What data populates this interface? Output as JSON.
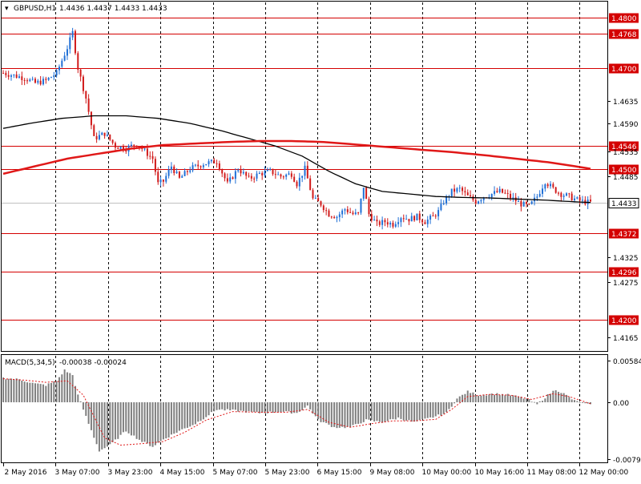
{
  "header": {
    "symbol": "GBPUSD,H1",
    "ohlc": "1.4436 1.4437 1.4433 1.4433"
  },
  "macd_header": {
    "label": "MACD(5,34,5)",
    "values": "-0.00038 -0.00024"
  },
  "colors": {
    "bull": "#1f6fd6",
    "bear": "#d11a1a",
    "level": "#d40000",
    "ma_fast": "#000000",
    "ma_slow": "#e01818",
    "macd_bar": "#7f7f7f",
    "macd_signal": "#e01818",
    "grid": "#000000"
  },
  "chart_data": {
    "type": "candlestick",
    "ylim": [
      1.414,
      1.483
    ],
    "price_ticks": [
      "1.4800",
      "1.4768",
      "1.4700",
      "1.4635",
      "1.4590",
      "1.4546",
      "1.4535",
      "1.4500",
      "1.4485",
      "1.4433",
      "1.4372",
      "1.4325",
      "1.4296",
      "1.4275",
      "1.4200",
      "1.4165"
    ],
    "levels": [
      {
        "value": 1.48,
        "label": "1.4800"
      },
      {
        "value": 1.4768,
        "label": "1.4768"
      },
      {
        "value": 1.47,
        "label": "1.4700"
      },
      {
        "value": 1.4546,
        "label": "1.4546"
      },
      {
        "value": 1.45,
        "label": "1.4500"
      },
      {
        "value": 1.4372,
        "label": "1.4372"
      },
      {
        "value": 1.4296,
        "label": "1.4296"
      },
      {
        "value": 1.42,
        "label": "1.4200"
      }
    ],
    "current_price": {
      "value": 1.4433,
      "label": "1.4433"
    },
    "x_labels": [
      "2 May 2016",
      "3 May 07:00",
      "3 May 23:00",
      "4 May 15:00",
      "5 May 07:00",
      "5 May 23:00",
      "6 May 15:00",
      "9 May 08:00",
      "10 May 00:00",
      "10 May 16:00",
      "11 May 08:00",
      "12 May 00:00"
    ],
    "grid": "vertical dashed at x labels",
    "close_path": [
      [
        0,
        1.469
      ],
      [
        4,
        1.4685
      ],
      [
        8,
        1.468
      ],
      [
        12,
        1.467
      ],
      [
        16,
        1.4675
      ],
      [
        20,
        1.469
      ],
      [
        24,
        1.474
      ],
      [
        26,
        1.477
      ],
      [
        28,
        1.47
      ],
      [
        31,
        1.464
      ],
      [
        34,
        1.456
      ],
      [
        38,
        1.457
      ],
      [
        42,
        1.4545
      ],
      [
        46,
        1.454
      ],
      [
        50,
        1.455
      ],
      [
        54,
        1.453
      ],
      [
        56,
        1.452
      ],
      [
        58,
        1.447
      ],
      [
        60,
        1.4475
      ],
      [
        63,
        1.4505
      ],
      [
        66,
        1.448
      ],
      [
        70,
        1.45
      ],
      [
        75,
        1.451
      ],
      [
        80,
        1.4515
      ],
      [
        84,
        1.447
      ],
      [
        88,
        1.45
      ],
      [
        92,
        1.448
      ],
      [
        96,
        1.449
      ],
      [
        100,
        1.4495
      ],
      [
        104,
        1.4485
      ],
      [
        108,
        1.449
      ],
      [
        110,
        1.447
      ],
      [
        113,
        1.45
      ],
      [
        116,
        1.444
      ],
      [
        119,
        1.443
      ],
      [
        122,
        1.441
      ],
      [
        125,
        1.4405
      ],
      [
        128,
        1.442
      ],
      [
        131,
        1.441
      ],
      [
        133,
        1.441
      ],
      [
        135,
        1.4465
      ],
      [
        137,
        1.441
      ],
      [
        140,
        1.439
      ],
      [
        143,
        1.4395
      ],
      [
        146,
        1.439
      ],
      [
        149,
        1.4405
      ],
      [
        152,
        1.44
      ],
      [
        155,
        1.4405
      ],
      [
        158,
        1.4395
      ],
      [
        161,
        1.4405
      ],
      [
        163,
        1.4415
      ],
      [
        165,
        1.4435
      ],
      [
        168,
        1.4455
      ],
      [
        171,
        1.446
      ],
      [
        174,
        1.4445
      ],
      [
        177,
        1.4435
      ],
      [
        180,
        1.4445
      ],
      [
        183,
        1.445
      ],
      [
        186,
        1.4455
      ],
      [
        188,
        1.445
      ],
      [
        191,
        1.444
      ],
      [
        194,
        1.443
      ],
      [
        197,
        1.4425
      ],
      [
        200,
        1.4445
      ],
      [
        203,
        1.4475
      ],
      [
        206,
        1.446
      ],
      [
        209,
        1.445
      ],
      [
        212,
        1.4445
      ],
      [
        214,
        1.444
      ],
      [
        217,
        1.4435
      ],
      [
        220,
        1.4433
      ]
    ],
    "series": [
      {
        "name": "MA1",
        "role": "ma_fast",
        "points": [
          [
            0,
            1.458
          ],
          [
            10,
            1.459
          ],
          [
            22,
            1.46
          ],
          [
            34,
            1.4605
          ],
          [
            46,
            1.4605
          ],
          [
            58,
            1.46
          ],
          [
            70,
            1.459
          ],
          [
            82,
            1.4575
          ],
          [
            92,
            1.456
          ],
          [
            102,
            1.4545
          ],
          [
            112,
            1.4525
          ],
          [
            122,
            1.4495
          ],
          [
            132,
            1.447
          ],
          [
            142,
            1.4455
          ],
          [
            152,
            1.445
          ],
          [
            162,
            1.4445
          ],
          [
            172,
            1.4443
          ],
          [
            182,
            1.4442
          ],
          [
            192,
            1.444
          ],
          [
            202,
            1.4438
          ],
          [
            212,
            1.4435
          ],
          [
            220,
            1.4433
          ]
        ]
      },
      {
        "name": "MA2",
        "role": "ma_slow",
        "points": [
          [
            0,
            1.449
          ],
          [
            12,
            1.4505
          ],
          [
            24,
            1.452
          ],
          [
            36,
            1.453
          ],
          [
            48,
            1.454
          ],
          [
            60,
            1.4547
          ],
          [
            72,
            1.455
          ],
          [
            84,
            1.4553
          ],
          [
            96,
            1.4555
          ],
          [
            108,
            1.4555
          ],
          [
            120,
            1.4553
          ],
          [
            132,
            1.4548
          ],
          [
            144,
            1.4543
          ],
          [
            156,
            1.4538
          ],
          [
            168,
            1.4533
          ],
          [
            180,
            1.4527
          ],
          [
            192,
            1.452
          ],
          [
            204,
            1.4513
          ],
          [
            214,
            1.4505
          ],
          [
            220,
            1.45
          ]
        ]
      }
    ],
    "macd": {
      "ylim": [
        -0.00797,
        0.00584
      ],
      "ticks": [
        "0.00584",
        "0.00",
        "-0.00797"
      ],
      "hist_path": [
        [
          0,
          0.0034
        ],
        [
          6,
          0.0032
        ],
        [
          12,
          0.0026
        ],
        [
          16,
          0.0024
        ],
        [
          20,
          0.003
        ],
        [
          23,
          0.0045
        ],
        [
          26,
          0.0038
        ],
        [
          28,
          0.001
        ],
        [
          32,
          -0.003
        ],
        [
          36,
          -0.0068
        ],
        [
          40,
          -0.006
        ],
        [
          46,
          -0.004
        ],
        [
          52,
          -0.0055
        ],
        [
          56,
          -0.0062
        ],
        [
          60,
          -0.0052
        ],
        [
          66,
          -0.004
        ],
        [
          72,
          -0.003
        ],
        [
          80,
          -0.001
        ],
        [
          88,
          -0.0012
        ],
        [
          96,
          -0.0015
        ],
        [
          104,
          -0.0013
        ],
        [
          110,
          -0.0015
        ],
        [
          114,
          -0.0005
        ],
        [
          118,
          -0.0025
        ],
        [
          124,
          -0.0035
        ],
        [
          130,
          -0.0035
        ],
        [
          136,
          -0.0025
        ],
        [
          142,
          -0.0028
        ],
        [
          148,
          -0.0022
        ],
        [
          154,
          -0.0028
        ],
        [
          160,
          -0.0022
        ],
        [
          166,
          -0.0015
        ],
        [
          170,
          0.0005
        ],
        [
          174,
          0.0015
        ],
        [
          178,
          0.001
        ],
        [
          184,
          0.0012
        ],
        [
          190,
          0.001
        ],
        [
          196,
          0.0005
        ],
        [
          200,
          -0.0003
        ],
        [
          204,
          0.001
        ],
        [
          207,
          0.0018
        ],
        [
          210,
          0.0012
        ],
        [
          214,
          0.0002
        ],
        [
          220,
          -0.0004
        ]
      ],
      "signal_path": [
        [
          0,
          0.0033
        ],
        [
          8,
          0.0031
        ],
        [
          16,
          0.0028
        ],
        [
          24,
          0.003
        ],
        [
          30,
          0.001
        ],
        [
          38,
          -0.005
        ],
        [
          44,
          -0.006
        ],
        [
          52,
          -0.0058
        ],
        [
          60,
          -0.0055
        ],
        [
          68,
          -0.0042
        ],
        [
          76,
          -0.0025
        ],
        [
          86,
          -0.0013
        ],
        [
          96,
          -0.0014
        ],
        [
          106,
          -0.0014
        ],
        [
          114,
          -0.001
        ],
        [
          122,
          -0.0028
        ],
        [
          130,
          -0.0035
        ],
        [
          138,
          -0.003
        ],
        [
          146,
          -0.0026
        ],
        [
          154,
          -0.0026
        ],
        [
          162,
          -0.0024
        ],
        [
          168,
          -0.001
        ],
        [
          174,
          0.0008
        ],
        [
          182,
          0.0011
        ],
        [
          190,
          0.001
        ],
        [
          198,
          0.0004
        ],
        [
          206,
          0.0012
        ],
        [
          212,
          0.0008
        ],
        [
          220,
          -0.0002
        ]
      ]
    }
  }
}
